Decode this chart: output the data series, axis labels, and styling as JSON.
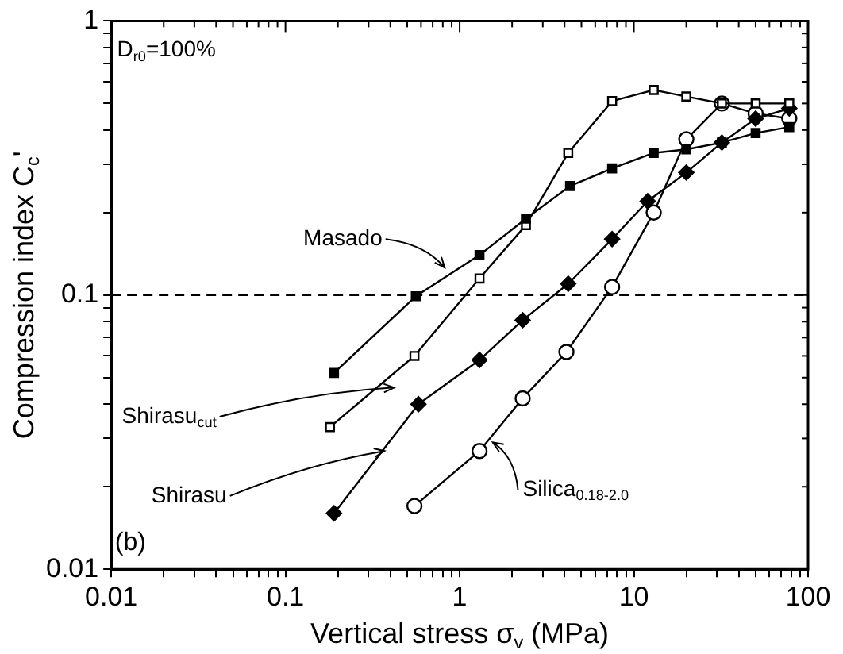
{
  "chart_data": {
    "type": "line",
    "xlabel": "Vertical stress σ$_{v}$ (MPa)",
    "ylabel": "Compression index C$_{c}$'",
    "log": "xy",
    "grid": false,
    "legend": false,
    "line_style": "solid",
    "xlim": [
      0.01,
      100
    ],
    "ylim": [
      0.01,
      1
    ],
    "xticks": [
      0.01,
      {
        "value": 0.02,
        "label": null
      },
      {
        "value": 0.03,
        "label": null
      },
      {
        "value": 0.04,
        "label": null
      },
      {
        "value": 0.05,
        "label": null
      },
      {
        "value": 0.06,
        "label": null
      },
      {
        "value": 0.07,
        "label": null
      },
      {
        "value": 0.08,
        "label": null
      },
      {
        "value": 0.09,
        "label": null
      },
      0.1,
      {
        "value": 0.2,
        "label": null
      },
      {
        "value": 0.3,
        "label": null
      },
      {
        "value": 0.4,
        "label": null
      },
      {
        "value": 0.5,
        "label": null
      },
      {
        "value": 0.6,
        "label": null
      },
      {
        "value": 0.7,
        "label": null
      },
      {
        "value": 0.8,
        "label": null
      },
      {
        "value": 0.9,
        "label": null
      },
      1,
      {
        "value": 2,
        "label": null
      },
      {
        "value": 3,
        "label": null
      },
      {
        "value": 4,
        "label": null
      },
      {
        "value": 5,
        "label": null
      },
      {
        "value": 6,
        "label": null
      },
      {
        "value": 7,
        "label": null
      },
      {
        "value": 8,
        "label": null
      },
      {
        "value": 9,
        "label": null
      },
      10,
      {
        "value": 20,
        "label": null
      },
      {
        "value": 30,
        "label": null
      },
      {
        "value": 40,
        "label": null
      },
      {
        "value": 50,
        "label": null
      },
      {
        "value": 60,
        "label": null
      },
      {
        "value": 70,
        "label": null
      },
      {
        "value": 80,
        "label": null
      },
      {
        "value": 90,
        "label": null
      },
      100
    ],
    "yticks": [
      0.01,
      {
        "value": 0.02,
        "label": null
      },
      {
        "value": 0.03,
        "label": null
      },
      {
        "value": 0.04,
        "label": null
      },
      {
        "value": 0.05,
        "label": null
      },
      {
        "value": 0.06,
        "label": null
      },
      {
        "value": 0.07,
        "label": null
      },
      {
        "value": 0.08,
        "label": null
      },
      {
        "value": 0.09,
        "label": null
      },
      0.1,
      {
        "value": 0.2,
        "label": null
      },
      {
        "value": 0.3,
        "label": null
      },
      {
        "value": 0.4,
        "label": null
      },
      {
        "value": 0.5,
        "label": null
      },
      {
        "value": 0.6,
        "label": null
      },
      {
        "value": 0.7,
        "label": null
      },
      {
        "value": 0.8,
        "label": null
      },
      {
        "value": 0.9,
        "label": null
      },
      1
    ],
    "ref_lines": [
      {
        "axis": "y",
        "value": 0.1,
        "line_style": "dashed",
        "color": "#000000"
      }
    ],
    "annotations": [
      "D$_{r0}$=100%",
      "(b)"
    ],
    "series": [
      {
        "name": "Masado",
        "color": "#000000",
        "marker": "square",
        "x": [
          0.19,
          0.56,
          1.3,
          2.4,
          4.3,
          7.5,
          13,
          20,
          32,
          50,
          78
        ],
        "values": [
          0.052,
          0.099,
          0.14,
          0.19,
          0.25,
          0.29,
          0.33,
          0.34,
          0.36,
          0.39,
          0.41
        ]
      },
      {
        "name": "Shirasu$_{cut}$",
        "color": "#000000",
        "marker": "square",
        "x": [
          0.18,
          0.55,
          1.3,
          2.4,
          4.2,
          7.5,
          13,
          20,
          32,
          50,
          78
        ],
        "values": [
          0.033,
          0.06,
          0.115,
          0.18,
          0.33,
          0.51,
          0.56,
          0.53,
          0.5,
          0.5,
          0.5
        ]
      },
      {
        "name": "Shirasu",
        "color": "#000000",
        "marker": "diamond",
        "x": [
          0.19,
          0.58,
          1.3,
          2.3,
          4.2,
          7.5,
          12,
          20,
          32,
          50,
          78
        ],
        "values": [
          0.016,
          0.04,
          0.058,
          0.081,
          0.11,
          0.16,
          0.22,
          0.28,
          0.36,
          0.44,
          0.48
        ]
      },
      {
        "name": "Silica$_{0.18-2.0}$",
        "color": "#000000",
        "marker": "circle",
        "x": [
          0.55,
          1.3,
          2.3,
          4.1,
          7.5,
          13,
          20,
          32,
          50,
          78
        ],
        "values": [
          0.017,
          0.027,
          0.042,
          0.062,
          0.107,
          0.2,
          0.37,
          0.5,
          0.46,
          0.44
        ]
      }
    ]
  }
}
